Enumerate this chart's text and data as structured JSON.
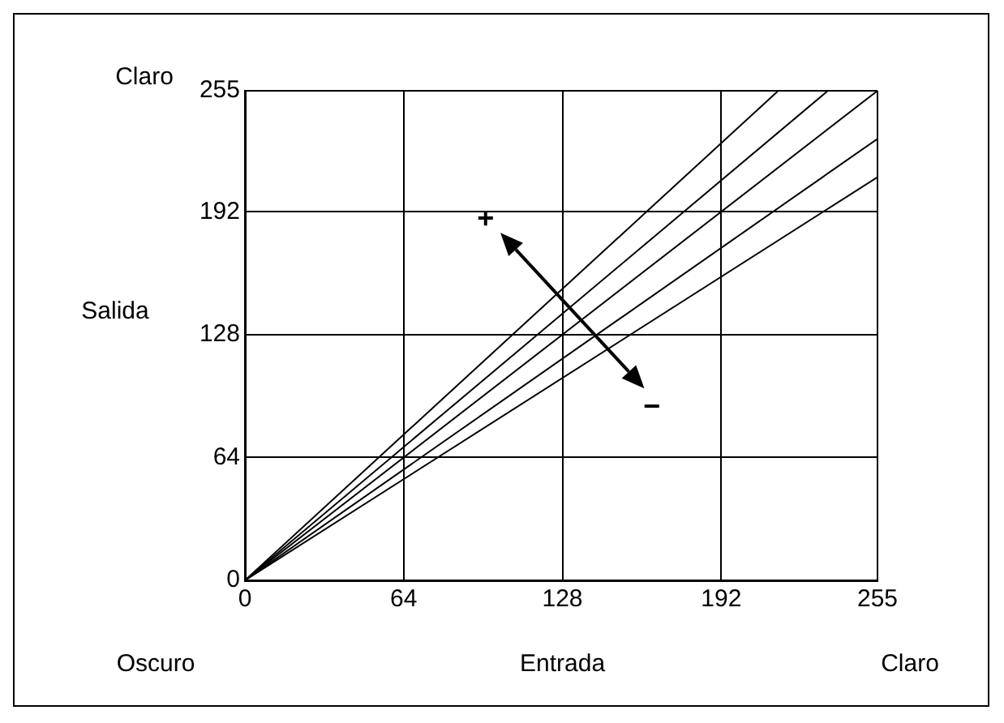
{
  "chart_data": {
    "type": "line",
    "xlabel": "Entrada",
    "ylabel": "Salida",
    "annotations": [
      "Claro",
      "Oscuro",
      "Claro",
      "+",
      "−"
    ],
    "series": [
      {
        "x": [
          0,
          215
        ],
        "values": [
          0,
          255
        ],
        "color": "#000000"
      },
      {
        "x": [
          0,
          235
        ],
        "values": [
          0,
          255
        ],
        "color": "#000000"
      },
      {
        "x": [
          0,
          255
        ],
        "values": [
          0,
          255
        ],
        "color": "#000000"
      },
      {
        "x": [
          0,
          255
        ],
        "values": [
          0,
          230
        ],
        "color": "#000000"
      },
      {
        "x": [
          0,
          255
        ],
        "values": [
          0,
          210
        ],
        "color": "#000000"
      }
    ],
    "xlim": [
      0,
      255
    ],
    "xticks": [
      0,
      64,
      128,
      192,
      255
    ],
    "ylim": [
      0,
      255
    ],
    "yticks": [
      0,
      64,
      128,
      192,
      255
    ],
    "grid": true,
    "legend": false,
    "marker": "none",
    "line_style": "solid"
  }
}
